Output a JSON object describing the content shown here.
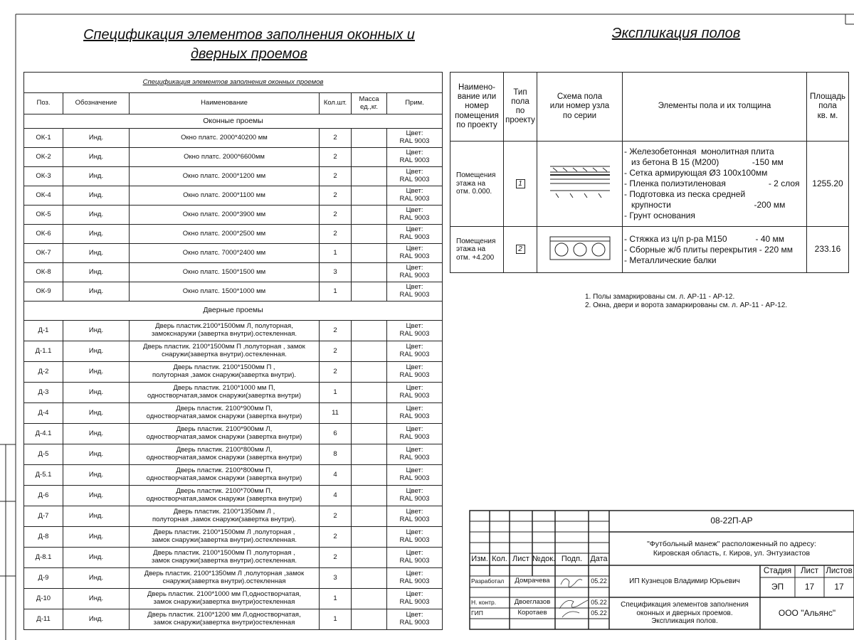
{
  "left_title": [
    "Спецификация элементов заполнения оконных и",
    "дверных проемов"
  ],
  "spec_table": {
    "caption": "Спецификация элементов заполнения оконных проемов",
    "headers": [
      "Поз.",
      "Обозначение",
      "Наименование",
      "Кол.шт.",
      "Масса\nед.,кг.",
      "Прим."
    ],
    "sections": [
      {
        "title": "Оконные проемы",
        "rows": [
          {
            "pos": "ОК-1",
            "mark": "Инд.",
            "name": "Окно платс. 2000*40200 мм",
            "qty": "2",
            "note": "Цвет:\nRAL 9003"
          },
          {
            "pos": "ОК-2",
            "mark": "Инд.",
            "name": "Окно платс. 2000*6600мм",
            "qty": "2",
            "note": "Цвет:\nRAL 9003"
          },
          {
            "pos": "ОК-3",
            "mark": "Инд.",
            "name": "Окно платс. 2000*1200 мм",
            "qty": "2",
            "note": "Цвет:\nRAL 9003"
          },
          {
            "pos": "ОК-4",
            "mark": "Инд.",
            "name": "Окно платс. 2000*1100 мм",
            "qty": "2",
            "note": "Цвет:\nRAL 9003"
          },
          {
            "pos": "ОК-5",
            "mark": "Инд.",
            "name": "Окно платс. 2000*3900 мм",
            "qty": "2",
            "note": "Цвет:\nRAL 9003"
          },
          {
            "pos": "ОК-6",
            "mark": "Инд.",
            "name": "Окно платс. 2000*2500 мм",
            "qty": "2",
            "note": "Цвет:\nRAL 9003"
          },
          {
            "pos": "ОК-7",
            "mark": "Инд.",
            "name": "Окно платс. 7000*2400 мм",
            "qty": "1",
            "note": "Цвет:\nRAL 9003"
          },
          {
            "pos": "ОК-8",
            "mark": "Инд.",
            "name": "Окно платс. 1500*1500 мм",
            "qty": "3",
            "note": "Цвет:\nRAL 9003"
          },
          {
            "pos": "ОК-9",
            "mark": "Инд.",
            "name": "Окно платс. 1500*1000 мм",
            "qty": "1",
            "note": "Цвет:\nRAL 9003"
          }
        ]
      },
      {
        "title": "Дверные проемы",
        "rows": [
          {
            "pos": "Д-1",
            "mark": "Инд.",
            "name": "Дверь пластик.2100*1500мм Л, полуторная,\nзамокснаружи (завертка внутри).остекленная.",
            "qty": "2",
            "note": "Цвет:\nRAL 9003"
          },
          {
            "pos": "Д-1.1",
            "mark": "Инд.",
            "name": "Дверь пластик. 2100*1500мм П ,полуторная , замок\nснаружи(завертка внутри).остекленная.",
            "qty": "2",
            "note": "Цвет:\nRAL 9003"
          },
          {
            "pos": "Д-2",
            "mark": "Инд.",
            "name": "Дверь пластик. 2100*1500мм П ,\nполуторная ,замок снаружи(завертка внутри).",
            "qty": "2",
            "note": "Цвет:\nRAL 9003"
          },
          {
            "pos": "Д-3",
            "mark": "Инд.",
            "name": "Дверь пластик. 2100*1000 мм П,\nодностворчатая,замок снаружи(завертка внутри)",
            "qty": "1",
            "note": "Цвет:\nRAL 9003"
          },
          {
            "pos": "Д-4",
            "mark": "Инд.",
            "name": "Дверь пластик. 2100*900мм П,\nодностворчатая,замок снаружи (завертка внутри)",
            "qty": "11",
            "note": "Цвет:\nRAL 9003"
          },
          {
            "pos": "Д-4.1",
            "mark": "Инд.",
            "name": "Дверь пластик. 2100*900мм Л,\nодностворчатая,замок снаружи (завертка внутри)",
            "qty": "6",
            "note": "Цвет:\nRAL 9003"
          },
          {
            "pos": "Д-5",
            "mark": "Инд.",
            "name": "Дверь пластик. 2100*800мм Л,\nодностворчатая,замок снаружи (завертка внутри)",
            "qty": "8",
            "note": "Цвет:\nRAL 9003"
          },
          {
            "pos": "Д-5.1",
            "mark": "Инд.",
            "name": "Дверь пластик. 2100*800мм П,\nодностворчатая,замок снаружи (завертка внутри)",
            "qty": "4",
            "note": "Цвет:\nRAL 9003"
          },
          {
            "pos": "Д-6",
            "mark": "Инд.",
            "name": "Дверь пластик. 2100*700мм П,\nодностворчатая,замок снаружи (завертка внутри)",
            "qty": "4",
            "note": "Цвет:\nRAL 9003"
          },
          {
            "pos": "Д-7",
            "mark": "Инд.",
            "name": "Дверь пластик. 2100*1350мм Л ,\nполуторная ,замок снаружи(завертка внутри).",
            "qty": "2",
            "note": "Цвет:\nRAL 9003"
          },
          {
            "pos": "Д-8",
            "mark": "Инд.",
            "name": "Дверь пластик. 2100*1500мм Л ,полуторная ,\nзамок снаружи(завертка внутри).остекленная.",
            "qty": "2",
            "note": "Цвет:\nRAL 9003"
          },
          {
            "pos": "Д-8.1",
            "mark": "Инд.",
            "name": "Дверь пластик. 2100*1500мм П ,полуторная ,\nзамок снаружи(завертка внутри).остекленная.",
            "qty": "2",
            "note": "Цвет:\nRAL 9003"
          },
          {
            "pos": "Д-9",
            "mark": "Инд.",
            "name": "Дверь пластик. 2100*1350мм Л ,полуторная ,замок\nснаружи(завертка внутри).остекленная",
            "qty": "3",
            "note": "Цвет:\nRAL 9003"
          },
          {
            "pos": "Д-10",
            "mark": "Инд.",
            "name": "Дверь пластик. 2100*1000 мм П,одностворчатая,\nзамок снаружи(завертка внутри)остекленная",
            "qty": "1",
            "note": "Цвет:\nRAL 9003"
          },
          {
            "pos": "Д-11",
            "mark": "Инд.",
            "name": "Дверь пластик. 2100*1200 мм Л,одностворчатая,\nзамок снаружи(завертка внутри)остекленная",
            "qty": "1",
            "note": "Цвет:\nRAL 9003"
          }
        ]
      }
    ]
  },
  "right_title": "Экспликация полов",
  "floor_table": {
    "headers": [
      "Наимено-\nвание или\nномер\nпомещения\nпо проекту",
      "Тип\nпола\nпо\nпроекту",
      "Схема пола\nили номер узла\nпо серии",
      "Элементы пола и их толщина",
      "Площадь\nпола\nкв. м."
    ],
    "rows": [
      {
        "room": "Помещения\nэтажа на\nотм. 0.000.",
        "type": "1",
        "elements": [
          "- Железобетонная  монолитная плита",
          "   из бетона В 15 (М200)              -150 мм",
          "- Сетка армирующая Ø3 100х100мм",
          "- Пленка полиэтиленовая                  - 2 слоя",
          "- Подготовка из песка средней",
          "   крупности                                   -200 мм",
          "- Грунт основания"
        ],
        "area": "1255.20"
      },
      {
        "room": "Помещения\nэтажа на\nотм. +4.200",
        "type": "2",
        "elements": [
          "- Стяжка из ц/п р-ра М150            - 40 мм",
          "- Сборные ж/б плиты перекрытия - 220 мм",
          "- Металлические балки"
        ],
        "area": "233.16"
      }
    ]
  },
  "notes": [
    "1. Полы замаркированы см. л. АР-11 - АР-12.",
    "2. Окна, двери и ворота замаркированы см. л.  АР-11 - АР-12."
  ],
  "title_block": {
    "code": "08-22П-АР",
    "project": "\"Футбольный манеж\" расположенный по адресу:\nКировская область, г. Киров, ул. Энтузиастов",
    "columns": [
      "Изм.",
      "Кол.",
      "Лист",
      "№док.",
      "Подп.",
      "Дата"
    ],
    "people": [
      {
        "role": "Разработал",
        "name": "Домрачева",
        "date": "05.22"
      },
      {
        "role": "Н. контр.",
        "name": "Двоеглазов",
        "date": "05.22"
      },
      {
        "role": "ГИП",
        "name": "Коротаев",
        "date": "05.22"
      }
    ],
    "designer": "ИП Кузнецов Владимир Юрьевич",
    "stage_headers": [
      "Стадия",
      "Лист",
      "Листов"
    ],
    "stage_values": [
      "ЭП",
      "17",
      "17"
    ],
    "sheet_title": "Спецификация элементов заполнения\nоконных и дверных проемов.\nЭкспликация полов.",
    "company": "ООО \"Альянс\""
  }
}
